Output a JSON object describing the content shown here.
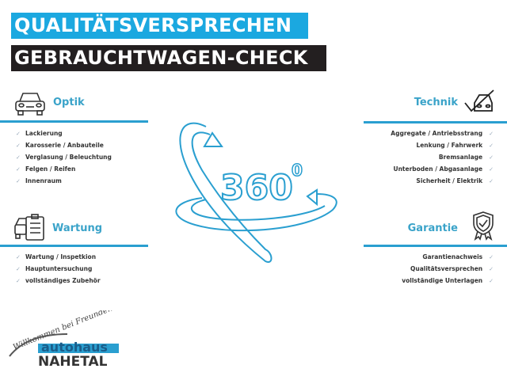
{
  "header": {
    "line1": "QUALITÄTSVERSPRECHEN",
    "line2": "GEBRAUCHTWAGEN-CHECK"
  },
  "colors": {
    "accent": "#1ba8e0",
    "dark": "#231f20",
    "heading": "#3aa3c9"
  },
  "optik": {
    "title": "Optik",
    "icon": "car-front-icon",
    "items": [
      "Lackierung",
      "Karosserie / Anbauteile",
      "Verglasung / Beleuchtung",
      "Felgen / Reifen",
      "Innenraum"
    ]
  },
  "wartung": {
    "title": "Wartung",
    "icon": "car-checklist-icon",
    "items": [
      "Wartung / Inspetkion",
      "Hauptuntersuchung",
      "vollständiges Zubehör"
    ]
  },
  "technik": {
    "title": "Technik",
    "icon": "car-check-icon",
    "items": [
      "Aggregate / Antriebsstrang",
      "Lenkung / Fahrwerk",
      "Bremsanlage",
      "Unterboden / Abgasanlage",
      "Sicherheit / Elektrik"
    ]
  },
  "garantie": {
    "title": "Garantie",
    "icon": "shield-badge-icon",
    "items": [
      "Garantienachweis",
      "Qualitätsversprechen",
      "vollständige Unterlagen"
    ]
  },
  "center": {
    "label": "360",
    "degree": "0",
    "icon": "rotation-360-icon"
  },
  "check": "✓",
  "logo": {
    "slogan": "Willkommen bei Freunden",
    "brand": "autohaus",
    "name": "NAHETAL"
  }
}
